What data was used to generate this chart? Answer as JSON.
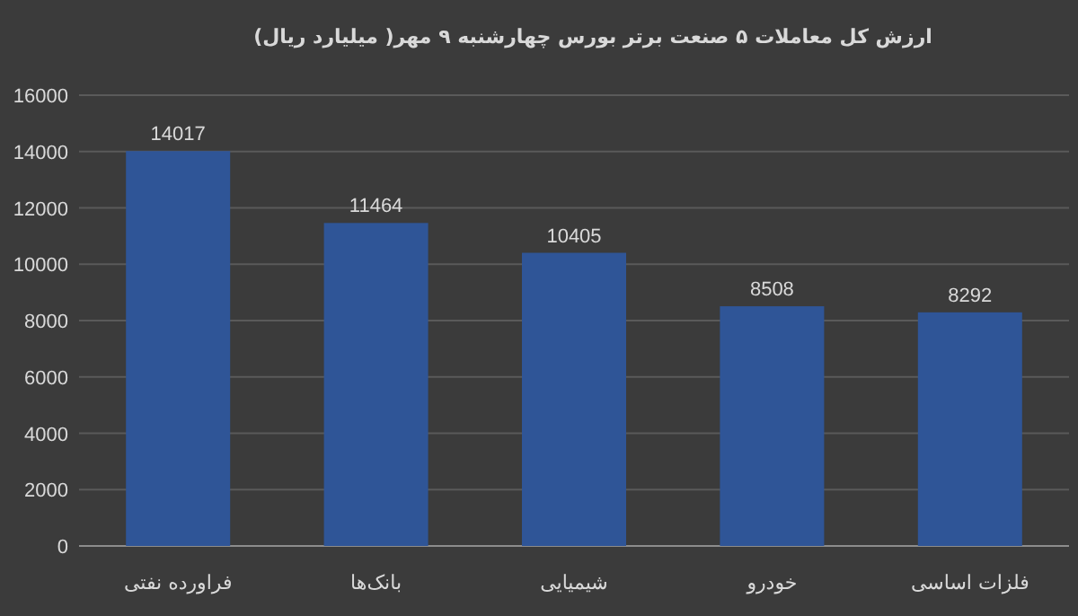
{
  "chart_data": {
    "type": "bar",
    "title": "ارزش کل معاملات ۵ صنعت برتر بورس چهارشنبه ۹ مهر( میلیارد ریال)",
    "categories": [
      "فراورده نفتی",
      "بانک‌ها",
      "شیمیایی",
      "خودرو",
      "فلزات اساسی"
    ],
    "values": [
      14017,
      11464,
      10405,
      8508,
      8292
    ],
    "color": "#2f5597",
    "ylim": [
      0,
      16000
    ],
    "yticks": [
      0,
      2000,
      4000,
      6000,
      8000,
      10000,
      12000,
      14000,
      16000
    ],
    "grid": "y",
    "data_labels": true
  }
}
